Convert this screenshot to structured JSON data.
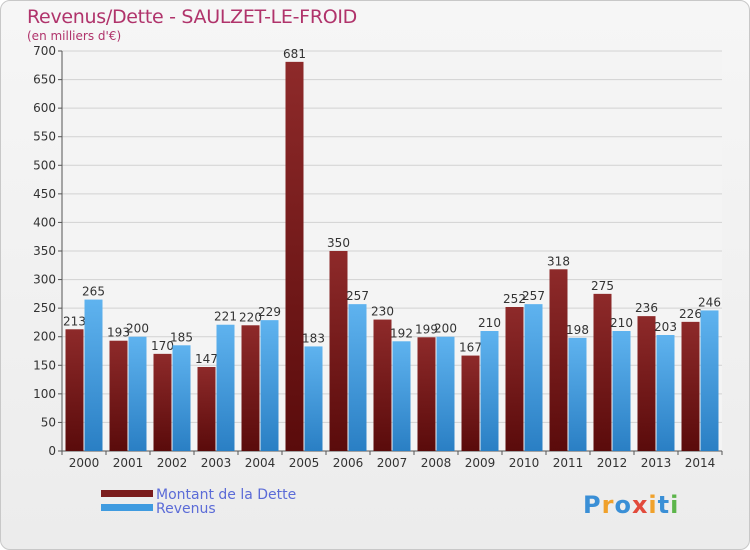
{
  "chart_data": {
    "type": "bar",
    "title": "Revenus/Dette - SAULZET-LE-FROID",
    "subtitle": "(en milliers d'€)",
    "categories": [
      "2000",
      "2001",
      "2002",
      "2003",
      "2004",
      "2005",
      "2006",
      "2007",
      "2008",
      "2009",
      "2010",
      "2011",
      "2012",
      "2013",
      "2014"
    ],
    "series": [
      {
        "name": "Montant de la Dette",
        "values": [
          213,
          193,
          170,
          147,
          220,
          681,
          350,
          230,
          199,
          167,
          252,
          318,
          275,
          236,
          226
        ],
        "color": "#7b1c1c"
      },
      {
        "name": "Revenus",
        "values": [
          265,
          200,
          185,
          221,
          229,
          183,
          257,
          192,
          200,
          210,
          257,
          198,
          210,
          203,
          246
        ],
        "color": "#3f9be0"
      }
    ],
    "ylim": [
      0,
      700
    ],
    "yticks": [
      0,
      50,
      100,
      150,
      200,
      250,
      300,
      350,
      400,
      450,
      500,
      550,
      600,
      650,
      700
    ],
    "grid": true,
    "legend_position": "bottom-left"
  },
  "logo": {
    "text": "Proxiti",
    "letters": [
      {
        "ch": "P",
        "color": "#3a8fd6"
      },
      {
        "ch": "r",
        "color": "#f0a12b"
      },
      {
        "ch": "o",
        "color": "#3a8fd6"
      },
      {
        "ch": "x",
        "color": "#e24a3b"
      },
      {
        "ch": "i",
        "color": "#f0a12b"
      },
      {
        "ch": "t",
        "color": "#3a8fd6"
      },
      {
        "ch": "i",
        "color": "#5cb54a"
      }
    ]
  }
}
